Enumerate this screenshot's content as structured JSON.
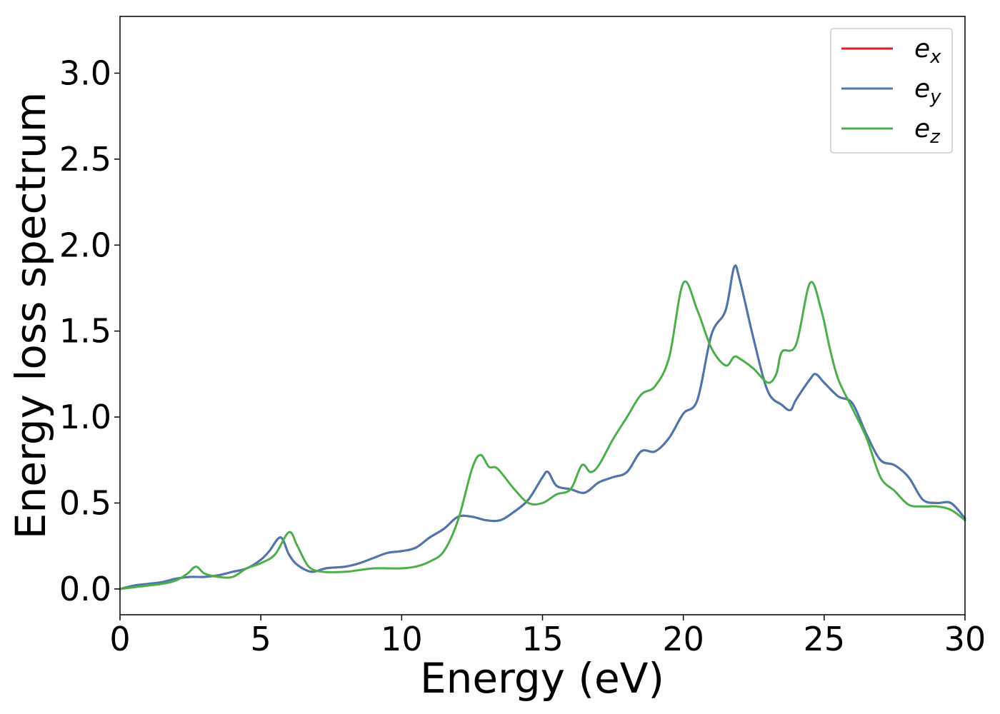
{
  "chart_data": {
    "type": "line",
    "title": "",
    "xlabel": "Energy (eV)",
    "ylabel": "Energy loss spectrum",
    "xlim": [
      0,
      30
    ],
    "ylim": [
      -0.15,
      3.33
    ],
    "xticks": [
      0,
      5,
      10,
      15,
      20,
      25,
      30
    ],
    "xtick_labels": [
      "0",
      "5",
      "10",
      "15",
      "20",
      "25",
      "30"
    ],
    "yticks": [
      0.0,
      0.5,
      1.0,
      1.5,
      2.0,
      2.5,
      3.0
    ],
    "ytick_labels": [
      "0.0",
      "0.5",
      "1.0",
      "1.5",
      "2.0",
      "2.5",
      "3.0"
    ],
    "grid": false,
    "legend_position": "top-right",
    "series": [
      {
        "name": "e",
        "subscript": "x",
        "color": "#e41a1c",
        "x": [
          0,
          0.5,
          1,
          1.5,
          2,
          2.5,
          3,
          3.5,
          4,
          4.5,
          5,
          5.3,
          5.7,
          6,
          6.3,
          6.8,
          7.3,
          8,
          8.5,
          9,
          9.5,
          10,
          10.5,
          11,
          11.5,
          12,
          12.5,
          13,
          13.5,
          14,
          14.5,
          15,
          15.2,
          15.5,
          16,
          16.5,
          17,
          17.5,
          18,
          18.5,
          19,
          19.5,
          20,
          20.5,
          21,
          21.5,
          21.8,
          22,
          22.5,
          23,
          23.5,
          23.8,
          24,
          24.5,
          24.7,
          25,
          25.5,
          26,
          26.5,
          27,
          27.5,
          28,
          28.5,
          29,
          29.5,
          30
        ],
        "y": [
          0.0,
          0.02,
          0.03,
          0.04,
          0.06,
          0.07,
          0.07,
          0.08,
          0.1,
          0.12,
          0.17,
          0.22,
          0.3,
          0.2,
          0.14,
          0.1,
          0.12,
          0.13,
          0.15,
          0.18,
          0.21,
          0.22,
          0.24,
          0.3,
          0.35,
          0.42,
          0.42,
          0.4,
          0.4,
          0.45,
          0.52,
          0.65,
          0.68,
          0.6,
          0.58,
          0.56,
          0.62,
          0.65,
          0.68,
          0.8,
          0.8,
          0.88,
          1.02,
          1.1,
          1.48,
          1.62,
          1.87,
          1.8,
          1.45,
          1.15,
          1.07,
          1.04,
          1.1,
          1.22,
          1.25,
          1.2,
          1.12,
          1.08,
          0.9,
          0.75,
          0.72,
          0.65,
          0.52,
          0.5,
          0.5,
          0.41
        ]
      },
      {
        "name": "e",
        "subscript": "y",
        "color": "#4a78b0",
        "x": [
          0,
          0.5,
          1,
          1.5,
          2,
          2.5,
          3,
          3.5,
          4,
          4.5,
          5,
          5.3,
          5.7,
          6,
          6.3,
          6.8,
          7.3,
          8,
          8.5,
          9,
          9.5,
          10,
          10.5,
          11,
          11.5,
          12,
          12.5,
          13,
          13.5,
          14,
          14.5,
          15,
          15.2,
          15.5,
          16,
          16.5,
          17,
          17.5,
          18,
          18.5,
          19,
          19.5,
          20,
          20.5,
          21,
          21.5,
          21.8,
          22,
          22.5,
          23,
          23.5,
          23.8,
          24,
          24.5,
          24.7,
          25,
          25.5,
          26,
          26.5,
          27,
          27.5,
          28,
          28.5,
          29,
          29.5,
          30
        ],
        "y": [
          0.0,
          0.02,
          0.03,
          0.04,
          0.06,
          0.07,
          0.07,
          0.08,
          0.1,
          0.12,
          0.17,
          0.22,
          0.3,
          0.2,
          0.14,
          0.1,
          0.12,
          0.13,
          0.15,
          0.18,
          0.21,
          0.22,
          0.24,
          0.3,
          0.35,
          0.42,
          0.42,
          0.4,
          0.4,
          0.45,
          0.52,
          0.65,
          0.68,
          0.6,
          0.58,
          0.56,
          0.62,
          0.65,
          0.68,
          0.8,
          0.8,
          0.88,
          1.02,
          1.1,
          1.48,
          1.62,
          1.87,
          1.8,
          1.45,
          1.15,
          1.07,
          1.04,
          1.1,
          1.22,
          1.25,
          1.2,
          1.12,
          1.08,
          0.9,
          0.75,
          0.72,
          0.65,
          0.52,
          0.5,
          0.5,
          0.41
        ]
      },
      {
        "name": "e",
        "subscript": "z",
        "color": "#4daf4a",
        "x": [
          0,
          0.5,
          1,
          1.5,
          2,
          2.4,
          2.7,
          3,
          3.5,
          4,
          4.5,
          5,
          5.5,
          6,
          6.3,
          6.7,
          7.2,
          8,
          8.5,
          9,
          9.5,
          10,
          10.5,
          11,
          11.5,
          12,
          12.5,
          12.8,
          13.1,
          13.4,
          14,
          14.5,
          15,
          15.5,
          16,
          16.4,
          16.7,
          17,
          17.5,
          18,
          18.5,
          19,
          19.5,
          20,
          20.5,
          21,
          21.5,
          21.8,
          22,
          22.5,
          23,
          23.3,
          23.5,
          24,
          24.5,
          24.9,
          25.2,
          25.5,
          26,
          26.5,
          27,
          27.5,
          28,
          28.5,
          29,
          29.5,
          30
        ],
        "y": [
          0.0,
          0.01,
          0.02,
          0.03,
          0.05,
          0.09,
          0.13,
          0.09,
          0.07,
          0.07,
          0.12,
          0.15,
          0.2,
          0.33,
          0.25,
          0.13,
          0.1,
          0.1,
          0.11,
          0.12,
          0.12,
          0.12,
          0.13,
          0.16,
          0.22,
          0.4,
          0.7,
          0.78,
          0.71,
          0.7,
          0.58,
          0.5,
          0.5,
          0.55,
          0.58,
          0.72,
          0.68,
          0.72,
          0.87,
          1.0,
          1.13,
          1.18,
          1.35,
          1.78,
          1.62,
          1.4,
          1.3,
          1.35,
          1.34,
          1.28,
          1.2,
          1.25,
          1.38,
          1.42,
          1.78,
          1.62,
          1.4,
          1.22,
          1.05,
          0.88,
          0.65,
          0.57,
          0.49,
          0.48,
          0.48,
          0.46,
          0.4
        ]
      }
    ]
  }
}
